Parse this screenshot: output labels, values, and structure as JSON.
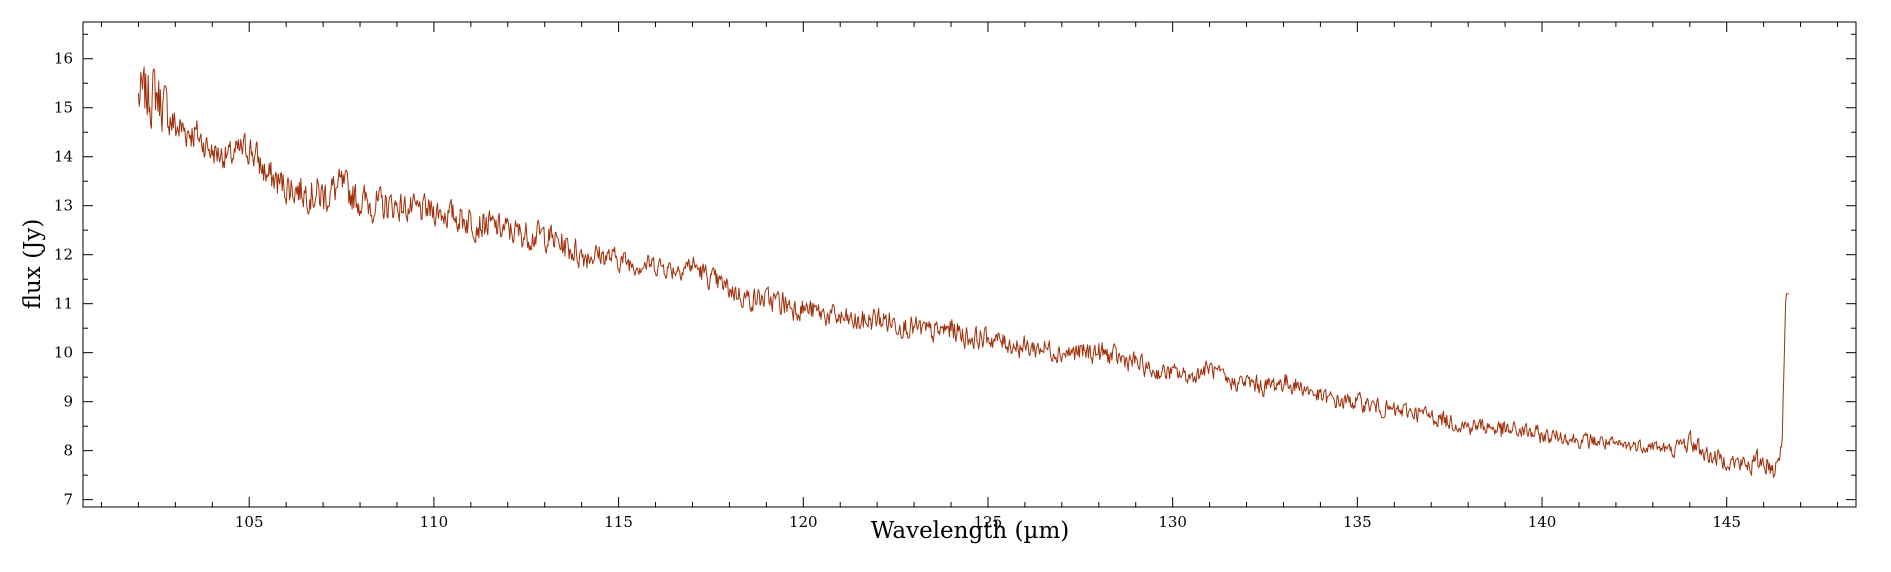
{
  "chart_data": {
    "type": "line",
    "xlabel": "Wavelength (µm)",
    "ylabel": "flux (Jy)",
    "xlim": [
      100.5,
      148.5
    ],
    "ylim": [
      6.85,
      16.75
    ],
    "xticks": [
      105,
      110,
      115,
      120,
      125,
      130,
      135,
      140,
      145
    ],
    "xtick_labels": [
      "105",
      "110",
      "115",
      "120",
      "125",
      "130",
      "135",
      "140",
      "145"
    ],
    "yticks": [
      7,
      8,
      9,
      10,
      11,
      12,
      13,
      14,
      15,
      16
    ],
    "ytick_labels": [
      "7",
      "8",
      "9",
      "10",
      "11",
      "12",
      "13",
      "14",
      "15",
      "16"
    ],
    "x_minor_step": 1,
    "y_minor_step": 0.5,
    "grid": false,
    "line_color": "#a0300a",
    "series": [
      {
        "x": [
          102.0,
          102.5,
          103.0,
          103.5,
          104.0,
          104.5,
          105.0,
          105.5,
          106.0,
          106.5,
          107.0,
          107.5,
          108.0,
          108.5,
          109.0,
          109.5,
          110.0,
          110.5,
          111.0,
          111.5,
          112.0,
          112.5,
          113.0,
          113.5,
          114.0,
          114.5,
          115.0,
          115.5,
          116.0,
          116.5,
          117.0,
          117.5,
          118.0,
          118.5,
          119.0,
          119.5,
          120.0,
          120.5,
          121.0,
          121.5,
          122.0,
          122.5,
          123.0,
          123.5,
          124.0,
          124.5,
          125.0,
          125.5,
          126.0,
          126.5,
          127.0,
          127.5,
          128.0,
          128.5,
          129.0,
          129.5,
          130.0,
          130.5,
          131.0,
          131.5,
          132.0,
          132.5,
          133.0,
          133.5,
          134.0,
          134.5,
          135.0,
          135.5,
          136.0,
          136.5,
          137.0,
          137.5,
          138.0,
          138.5,
          139.0,
          139.5,
          140.0,
          140.5,
          141.0,
          141.5,
          142.0,
          142.5,
          143.0,
          143.5,
          144.0,
          144.5,
          145.0,
          145.5,
          146.0,
          146.3,
          146.5,
          146.6,
          146.7
        ],
        "y": [
          15.2,
          15.3,
          14.6,
          14.5,
          14.1,
          14.0,
          14.2,
          13.6,
          13.4,
          13.3,
          13.2,
          13.4,
          13.1,
          13.0,
          13.0,
          12.9,
          12.9,
          12.8,
          12.7,
          12.6,
          12.5,
          12.4,
          12.4,
          12.2,
          12.0,
          12.0,
          11.9,
          11.8,
          11.8,
          11.7,
          11.8,
          11.5,
          11.3,
          11.1,
          11.1,
          11.0,
          10.9,
          10.8,
          10.7,
          10.6,
          10.7,
          10.6,
          10.5,
          10.4,
          10.5,
          10.3,
          10.3,
          10.2,
          10.1,
          10.1,
          10.0,
          10.0,
          10.0,
          9.9,
          9.8,
          9.6,
          9.6,
          9.5,
          9.7,
          9.4,
          9.4,
          9.3,
          9.4,
          9.3,
          9.1,
          9.0,
          9.0,
          8.9,
          8.8,
          8.8,
          8.7,
          8.6,
          8.5,
          8.5,
          8.4,
          8.4,
          8.3,
          8.3,
          8.2,
          8.2,
          8.1,
          8.1,
          8.1,
          8.0,
          8.2,
          7.9,
          7.8,
          7.7,
          7.8,
          7.6,
          8.2,
          11.2,
          11.2
        ],
        "noise": [
          0.5,
          0.55,
          0.35,
          0.3,
          0.25,
          0.25,
          0.3,
          0.3,
          0.3,
          0.3,
          0.35,
          0.3,
          0.3,
          0.3,
          0.25,
          0.25,
          0.25,
          0.25,
          0.3,
          0.25,
          0.25,
          0.25,
          0.25,
          0.25,
          0.25,
          0.2,
          0.2,
          0.18,
          0.18,
          0.18,
          0.2,
          0.2,
          0.2,
          0.2,
          0.2,
          0.25,
          0.2,
          0.2,
          0.2,
          0.2,
          0.22,
          0.2,
          0.2,
          0.2,
          0.2,
          0.2,
          0.18,
          0.18,
          0.2,
          0.18,
          0.18,
          0.18,
          0.2,
          0.18,
          0.18,
          0.15,
          0.15,
          0.15,
          0.15,
          0.15,
          0.15,
          0.18,
          0.18,
          0.15,
          0.15,
          0.15,
          0.15,
          0.15,
          0.15,
          0.15,
          0.15,
          0.15,
          0.15,
          0.15,
          0.18,
          0.15,
          0.15,
          0.12,
          0.12,
          0.15,
          0.12,
          0.12,
          0.12,
          0.12,
          0.2,
          0.15,
          0.15,
          0.2,
          0.2,
          0.2,
          0.15,
          0.0,
          0.0
        ]
      }
    ]
  }
}
